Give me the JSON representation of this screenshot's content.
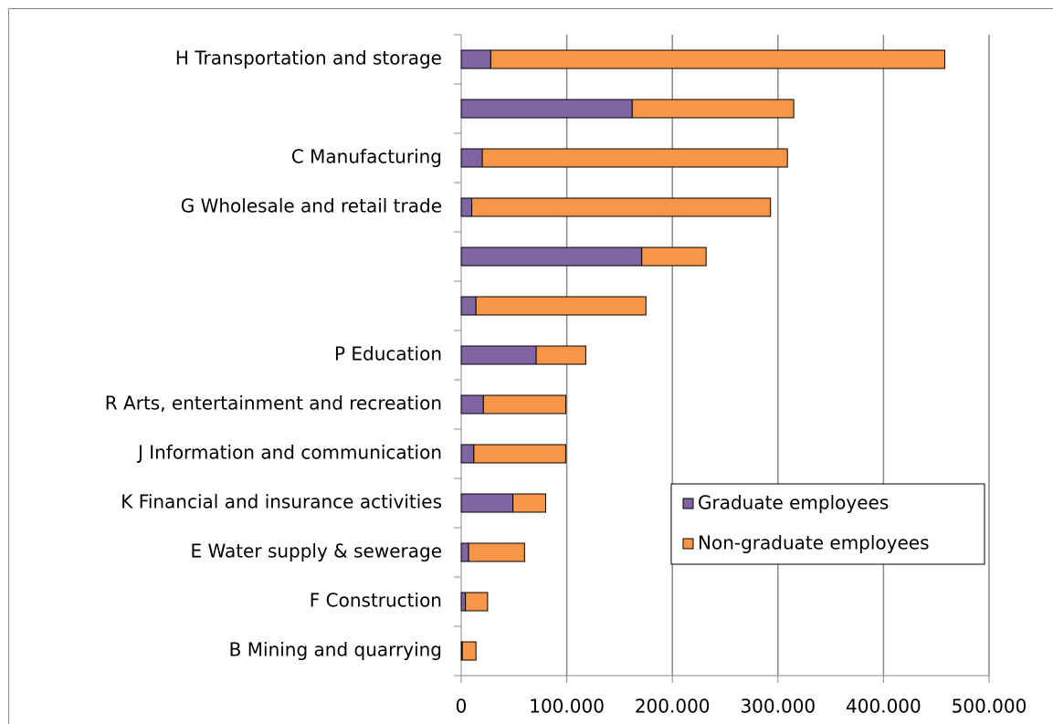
{
  "chart_data": {
    "type": "stacked-barh",
    "categories": [
      "H Transportation and storage",
      null,
      "C Manufacturing",
      "G Wholesale and retail trade",
      null,
      null,
      "P Education",
      "R Arts, entertainment and recreation",
      "J Information and communication",
      "K Financial and insurance activities",
      "E Water supply & sewerage",
      "F Construction",
      "B Mining and quarrying"
    ],
    "series": [
      {
        "name": "Graduate employees",
        "color": "#8064a2",
        "values": [
          28000,
          162000,
          20000,
          10000,
          171000,
          14000,
          71000,
          21000,
          12000,
          49000,
          7000,
          4000,
          1000
        ]
      },
      {
        "name": "Non-graduate employees",
        "color": "#f79646",
        "values": [
          430000,
          153000,
          289000,
          283000,
          61000,
          161000,
          47000,
          78000,
          87000,
          31000,
          53000,
          21000,
          13000
        ]
      }
    ],
    "xlim": [
      0,
      500000
    ],
    "xticks": [
      0,
      {
        "value": 100000,
        "label": "100.000"
      },
      {
        "value": 200000,
        "label": "200.000"
      },
      {
        "value": 300000,
        "label": "300.000"
      },
      {
        "value": 400000,
        "label": "400.000"
      },
      {
        "value": 500000,
        "label": "500.000"
      }
    ],
    "grid": true,
    "legend": "lower-right"
  }
}
